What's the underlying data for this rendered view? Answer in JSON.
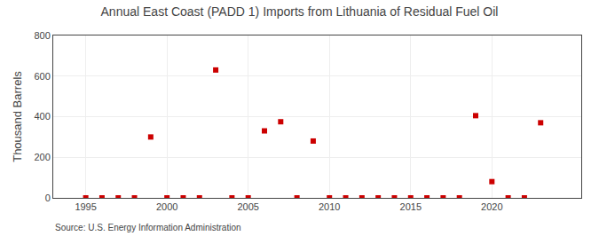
{
  "chart_data": {
    "type": "scatter",
    "title": "Annual East Coast (PADD 1) Imports from Lithuania of Residual Fuel Oil",
    "ylabel": "Thousand Barrels",
    "source": "Source: U.S. Energy Information Administration",
    "x": [
      1995,
      1996,
      1997,
      1998,
      1999,
      2000,
      2001,
      2002,
      2003,
      2004,
      2005,
      2006,
      2007,
      2008,
      2009,
      2010,
      2011,
      2012,
      2013,
      2014,
      2015,
      2016,
      2017,
      2018,
      2019,
      2020,
      2021,
      2022,
      2023
    ],
    "values": [
      0,
      0,
      0,
      0,
      300,
      0,
      0,
      0,
      630,
      0,
      0,
      330,
      375,
      0,
      280,
      0,
      0,
      0,
      0,
      0,
      0,
      0,
      0,
      0,
      405,
      80,
      0,
      0,
      370
    ],
    "color": "#cc0000",
    "marker": "square",
    "xlim": [
      1993.0,
      2025.5
    ],
    "ylim": [
      0,
      800
    ],
    "xticks": [
      1995,
      2000,
      2005,
      2010,
      2015,
      2020
    ],
    "yticks": [
      0,
      200,
      400,
      600,
      800
    ],
    "grid": true
  }
}
